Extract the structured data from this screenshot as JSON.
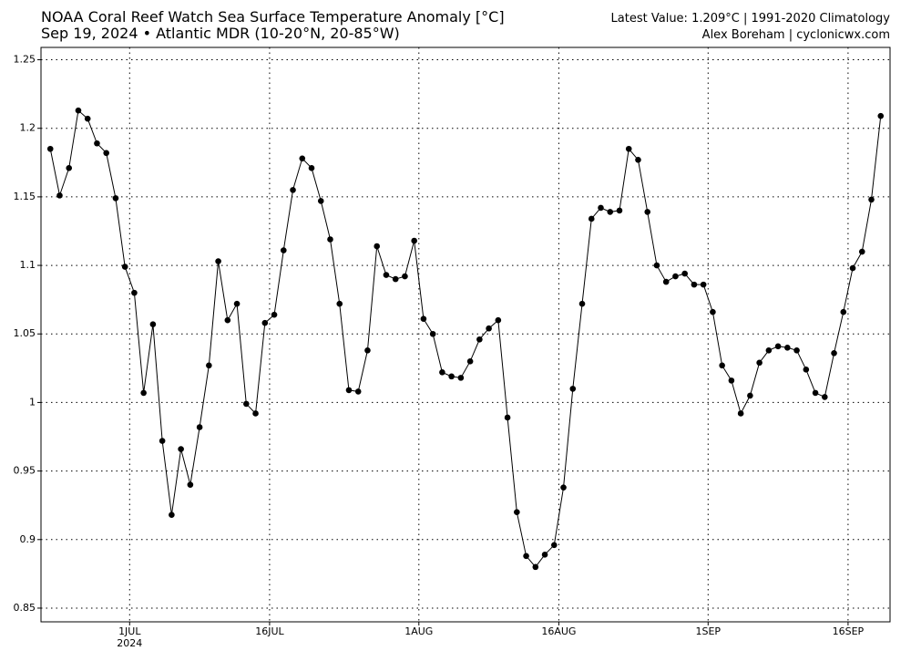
{
  "chart_data": {
    "type": "line",
    "title": "NOAA Coral Reef Watch Sea Surface Temperature Anomaly [°C]",
    "subtitle": "Sep 19, 2024 • Atlantic MDR (10-20°N, 20-85°W)",
    "right_title": "Latest Value: 1.209°C | 1991-2020 Climatology",
    "right_subtitle": "Alex Boreham | cyclonicwx.com",
    "x": [
      "2024-06-22T12:00",
      "2024-06-23T12:00",
      "2024-06-24T12:00",
      "2024-06-25T12:00",
      "2024-06-26T12:00",
      "2024-06-27T12:00",
      "2024-06-28T12:00",
      "2024-06-29T12:00",
      "2024-06-30T12:00",
      "2024-07-01T12:00",
      "2024-07-02T12:00",
      "2024-07-03T12:00",
      "2024-07-04T12:00",
      "2024-07-05T12:00",
      "2024-07-06T12:00",
      "2024-07-07T12:00",
      "2024-07-08T12:00",
      "2024-07-09T12:00",
      "2024-07-10T12:00",
      "2024-07-11T12:00",
      "2024-07-12T12:00",
      "2024-07-13T12:00",
      "2024-07-14T12:00",
      "2024-07-15T12:00",
      "2024-07-16T12:00",
      "2024-07-17T12:00",
      "2024-07-18T12:00",
      "2024-07-19T12:00",
      "2024-07-20T12:00",
      "2024-07-21T12:00",
      "2024-07-22T12:00",
      "2024-07-23T12:00",
      "2024-07-24T12:00",
      "2024-07-25T12:00",
      "2024-07-26T12:00",
      "2024-07-27T12:00",
      "2024-07-28T12:00",
      "2024-07-29T12:00",
      "2024-07-30T12:00",
      "2024-07-31T12:00",
      "2024-08-01T12:00",
      "2024-08-02T12:00",
      "2024-08-03T12:00",
      "2024-08-04T12:00",
      "2024-08-05T12:00",
      "2024-08-06T12:00",
      "2024-08-07T12:00",
      "2024-08-08T12:00",
      "2024-08-09T12:00",
      "2024-08-10T12:00",
      "2024-08-11T12:00",
      "2024-08-12T12:00",
      "2024-08-13T12:00",
      "2024-08-14T12:00",
      "2024-08-15T12:00",
      "2024-08-16T12:00",
      "2024-08-17T12:00",
      "2024-08-18T12:00",
      "2024-08-19T12:00",
      "2024-08-20T12:00",
      "2024-08-21T12:00",
      "2024-08-22T12:00",
      "2024-08-23T12:00",
      "2024-08-24T12:00",
      "2024-08-25T12:00",
      "2024-08-26T12:00",
      "2024-08-27T12:00",
      "2024-08-28T12:00",
      "2024-08-29T12:00",
      "2024-08-30T12:00",
      "2024-08-31T12:00",
      "2024-09-01T12:00",
      "2024-09-02T12:00",
      "2024-09-03T12:00",
      "2024-09-04T12:00",
      "2024-09-05T12:00",
      "2024-09-06T12:00",
      "2024-09-07T12:00",
      "2024-09-08T12:00",
      "2024-09-09T12:00",
      "2024-09-10T12:00",
      "2024-09-11T12:00",
      "2024-09-12T12:00",
      "2024-09-13T12:00",
      "2024-09-14T12:00",
      "2024-09-15T12:00",
      "2024-09-16T12:00",
      "2024-09-17T12:00",
      "2024-09-18T12:00",
      "2024-09-19T12:00"
    ],
    "series": [
      {
        "color": "#000000",
        "values": [
          1.185,
          1.151,
          1.171,
          1.213,
          1.207,
          1.189,
          1.182,
          1.149,
          1.099,
          1.08,
          1.007,
          1.057,
          0.972,
          0.918,
          0.966,
          0.94,
          0.982,
          1.027,
          1.103,
          1.06,
          1.072,
          0.999,
          0.992,
          1.058,
          1.064,
          1.111,
          1.155,
          1.178,
          1.171,
          1.147,
          1.119,
          1.072,
          1.009,
          1.008,
          1.038,
          1.114,
          1.093,
          1.09,
          1.092,
          1.118,
          1.061,
          1.05,
          1.022,
          1.019,
          1.018,
          1.03,
          1.046,
          1.054,
          1.06,
          0.989,
          0.92,
          0.888,
          0.88,
          0.889,
          0.896,
          0.938,
          1.01,
          1.072,
          1.134,
          1.142,
          1.139,
          1.14,
          1.185,
          1.177,
          1.139,
          1.1,
          1.088,
          1.092,
          1.094,
          1.086,
          1.086,
          1.066,
          1.027,
          1.016,
          0.992,
          1.005,
          1.029,
          1.038,
          1.041,
          1.04,
          1.038,
          1.024,
          1.007,
          1.004,
          1.036,
          1.066,
          1.098,
          1.11,
          1.148,
          1.209
        ]
      }
    ],
    "xlim": [
      "2024-06-21T12:00",
      "2024-09-20T12:00"
    ],
    "xticks": [
      {
        "value": "2024-07-01T00:00",
        "label": "1JUL"
      },
      {
        "value": "2024-07-16T00:00",
        "label": "16JUL"
      },
      {
        "value": "2024-08-01T00:00",
        "label": "1AUG"
      },
      {
        "value": "2024-08-16T00:00",
        "label": "16AUG"
      },
      {
        "value": "2024-09-01T00:00",
        "label": "1SEP"
      },
      {
        "value": "2024-09-16T00:00",
        "label": "16SEP"
      }
    ],
    "x_year_label": "2024",
    "ylim": [
      0.84,
      1.259
    ],
    "yticks": [
      0.85,
      0.9,
      0.95,
      1,
      1.05,
      1.1,
      1.15,
      1.2,
      1.25
    ],
    "grid": true
  }
}
